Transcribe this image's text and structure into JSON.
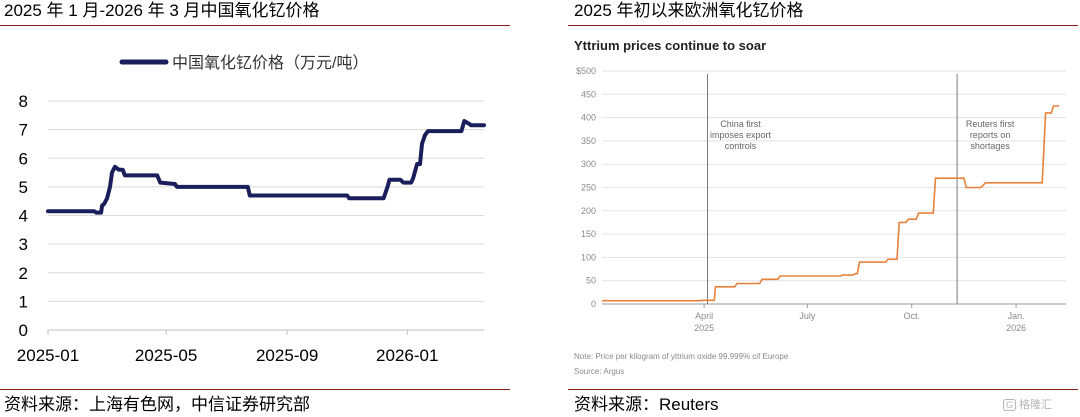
{
  "left": {
    "title": "2025 年 1 月-2026 年 3 月中国氧化钇价格",
    "source": "资料来源：上海有色网，中信证券研究部",
    "line_color": "#1a1f5c"
  },
  "right": {
    "title": "2025 年初以来欧洲氧化钇价格",
    "source": "资料来源：Reuters",
    "line_color": "#e8823a"
  },
  "watermark": "格隆汇",
  "chart_data": [
    {
      "type": "line",
      "title": "",
      "legend": "中国氧化钇价格（万元/吨）",
      "legend_position": "top",
      "grid": true,
      "ylim": [
        0,
        8
      ],
      "yticks": [
        0,
        1,
        2,
        3,
        4,
        5,
        6,
        7,
        8
      ],
      "xlim": [
        "2025-01-01",
        "2026-03-20"
      ],
      "xticks": [
        "2025-01",
        "2025-05",
        "2025-09",
        "2026-01"
      ],
      "series": [
        {
          "name": "中国氧化钇价格（万元/吨）",
          "points": [
            [
              "2025-01-01",
              4.15
            ],
            [
              "2025-02-17",
              4.15
            ],
            [
              "2025-02-19",
              4.1
            ],
            [
              "2025-02-24",
              4.1
            ],
            [
              "2025-02-25",
              4.35
            ],
            [
              "2025-02-27",
              4.4
            ],
            [
              "2025-03-02",
              4.6
            ],
            [
              "2025-03-05",
              5.0
            ],
            [
              "2025-03-07",
              5.5
            ],
            [
              "2025-03-10",
              5.7
            ],
            [
              "2025-03-14",
              5.6
            ],
            [
              "2025-03-18",
              5.6
            ],
            [
              "2025-03-20",
              5.4
            ],
            [
              "2025-04-22",
              5.4
            ],
            [
              "2025-04-25",
              5.15
            ],
            [
              "2025-05-10",
              5.1
            ],
            [
              "2025-05-12",
              5.0
            ],
            [
              "2025-07-23",
              5.0
            ],
            [
              "2025-07-25",
              4.7
            ],
            [
              "2025-11-01",
              4.7
            ],
            [
              "2025-11-03",
              4.6
            ],
            [
              "2025-12-08",
              4.6
            ],
            [
              "2025-12-12",
              5.0
            ],
            [
              "2025-12-14",
              5.25
            ],
            [
              "2025-12-25",
              5.25
            ],
            [
              "2025-12-28",
              5.15
            ],
            [
              "2026-01-05",
              5.15
            ],
            [
              "2026-01-07",
              5.3
            ],
            [
              "2026-01-11",
              5.8
            ],
            [
              "2026-01-14",
              5.8
            ],
            [
              "2026-01-16",
              6.5
            ],
            [
              "2026-01-19",
              6.8
            ],
            [
              "2026-01-22",
              6.95
            ],
            [
              "2026-02-25",
              6.95
            ],
            [
              "2026-02-28",
              7.3
            ],
            [
              "2026-03-05",
              7.2
            ],
            [
              "2026-03-07",
              7.15
            ],
            [
              "2026-03-20",
              7.15
            ]
          ]
        }
      ]
    },
    {
      "type": "line",
      "title": "Yttrium prices continue to soar",
      "note": "Note: Price per kilogram of yttrium oxide 99.999% cif Europe",
      "source": "Source: Argus",
      "grid": true,
      "ylim": [
        0,
        500
      ],
      "yticks": [
        0,
        50,
        100,
        150,
        200,
        250,
        300,
        350,
        400,
        450,
        500
      ],
      "ytick_labels": [
        "0",
        "50",
        "100",
        "150",
        "200",
        "250",
        "300",
        "350",
        "400",
        "450",
        "$500"
      ],
      "xlim": [
        "2025-01-01",
        "2026-02-14"
      ],
      "xticks": [
        {
          "date": "2025-04-01",
          "label": "April",
          "sublabel": "2025"
        },
        {
          "date": "2025-07-01",
          "label": "July",
          "sublabel": ""
        },
        {
          "date": "2025-10-01",
          "label": "Oct.",
          "sublabel": ""
        },
        {
          "date": "2026-01-01",
          "label": "Jan.",
          "sublabel": "2026"
        }
      ],
      "annotations": [
        {
          "date": "2025-04-04",
          "lines": [
            "China first",
            "imposes export",
            "controls"
          ]
        },
        {
          "date": "2025-11-10",
          "lines": [
            "Reuters first",
            "reports on",
            "shortages"
          ]
        }
      ],
      "series": [
        {
          "name": "",
          "points": [
            [
              "2025-01-01",
              7
            ],
            [
              "2025-03-28",
              7
            ],
            [
              "2025-03-31",
              8
            ],
            [
              "2025-04-10",
              8
            ],
            [
              "2025-04-11",
              37
            ],
            [
              "2025-04-28",
              37
            ],
            [
              "2025-04-30",
              44
            ],
            [
              "2025-05-20",
              44
            ],
            [
              "2025-05-22",
              53
            ],
            [
              "2025-06-05",
              53
            ],
            [
              "2025-06-07",
              60
            ],
            [
              "2025-07-30",
              60
            ],
            [
              "2025-08-01",
              62
            ],
            [
              "2025-08-10",
              62
            ],
            [
              "2025-08-12",
              65
            ],
            [
              "2025-08-14",
              65
            ],
            [
              "2025-08-16",
              90
            ],
            [
              "2025-09-08",
              90
            ],
            [
              "2025-09-10",
              96
            ],
            [
              "2025-09-18",
              96
            ],
            [
              "2025-09-20",
              175
            ],
            [
              "2025-09-26",
              175
            ],
            [
              "2025-09-28",
              182
            ],
            [
              "2025-10-05",
              182
            ],
            [
              "2025-10-07",
              195
            ],
            [
              "2025-10-20",
              195
            ],
            [
              "2025-10-22",
              270
            ],
            [
              "2025-11-16",
              270
            ],
            [
              "2025-11-18",
              250
            ],
            [
              "2025-12-01",
              250
            ],
            [
              "2025-12-03",
              255
            ],
            [
              "2025-12-05",
              260
            ],
            [
              "2026-01-24",
              260
            ],
            [
              "2026-01-27",
              410
            ],
            [
              "2026-02-01",
              410
            ],
            [
              "2026-02-03",
              425
            ],
            [
              "2026-02-08",
              425
            ]
          ]
        }
      ]
    }
  ]
}
